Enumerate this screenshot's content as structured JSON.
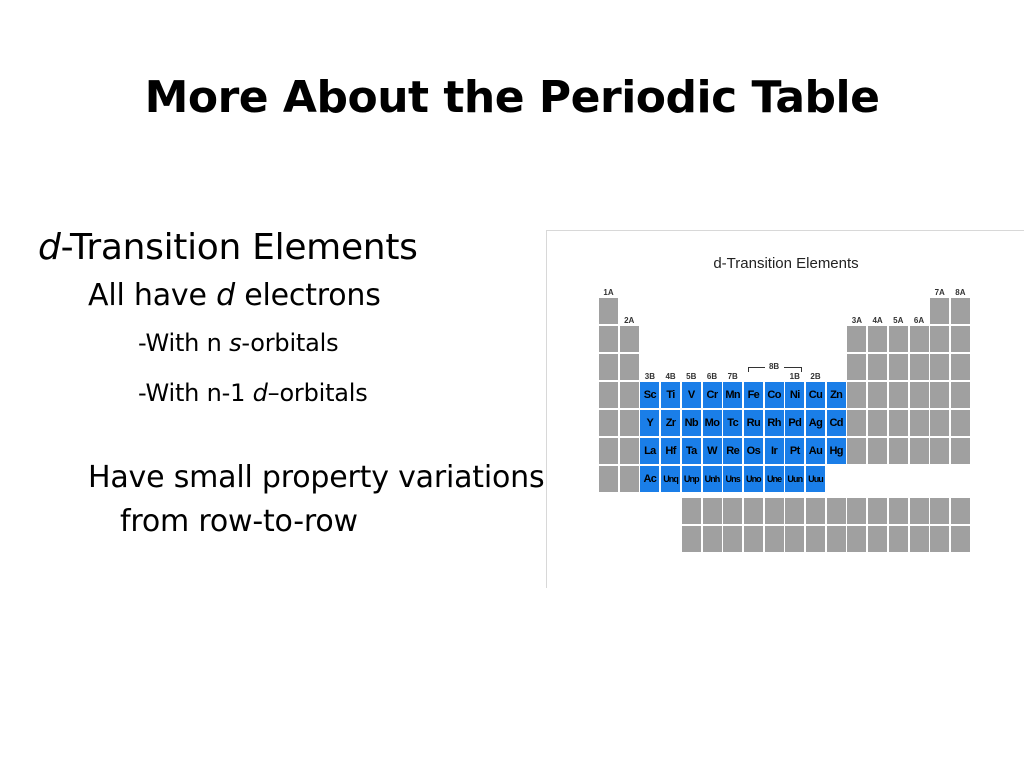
{
  "slide": {
    "title": "More About the Periodic Table",
    "bullet1": {
      "italic": "d",
      "rest": "-Transition Elements"
    },
    "bullet2": {
      "pre": "All have ",
      "italic": "d",
      "post": " electrons"
    },
    "bullet3": {
      "pre": "-With n ",
      "italic": "s",
      "post": "-orbitals"
    },
    "bullet4": {
      "pre": "-With n-1 ",
      "italic": "d",
      "post": "–orbitals"
    },
    "bullet5": "Have small property variations from row-to-row"
  },
  "figure": {
    "title": "d-Transition Elements",
    "group_labels": {
      "g1": "1A",
      "g2": "2A",
      "g3": "3B",
      "g4": "4B",
      "g5": "5B",
      "g6": "6B",
      "g7": "7B",
      "g8": "8B",
      "g11": "1B",
      "g12": "2B",
      "g13": "3A",
      "g14": "4A",
      "g15": "5A",
      "g16": "6A",
      "g17": "7A",
      "g18": "8A"
    },
    "transition_rows": [
      [
        "Sc",
        "Ti",
        "V",
        "Cr",
        "Mn",
        "Fe",
        "Co",
        "Ni",
        "Cu",
        "Zn"
      ],
      [
        "Y",
        "Zr",
        "Nb",
        "Mo",
        "Tc",
        "Ru",
        "Rh",
        "Pd",
        "Ag",
        "Cd"
      ],
      [
        "La",
        "Hf",
        "Ta",
        "W",
        "Re",
        "Os",
        "Ir",
        "Pt",
        "Au",
        "Hg"
      ],
      [
        "Ac",
        "Unq",
        "Unp",
        "Unh",
        "Uns",
        "Uno",
        "Une",
        "Uun",
        "Uuu"
      ]
    ],
    "colors": {
      "transition": "#1a7ee8",
      "other": "#a0a0a0"
    }
  }
}
